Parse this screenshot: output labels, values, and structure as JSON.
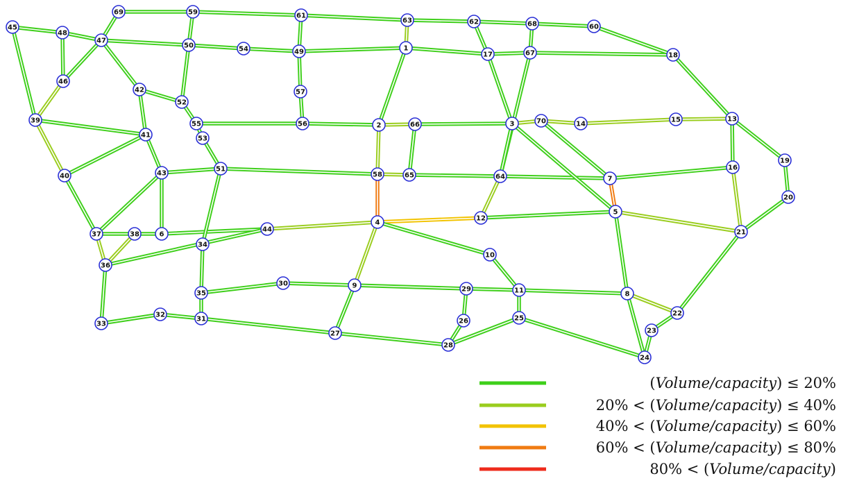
{
  "colors": {
    "c1": "#3ecf1a",
    "c2": "#9acd1e",
    "c3": "#f2c300",
    "c4": "#f07b12",
    "c5": "#ee2b1c",
    "node_fill": "#ffffff",
    "node_stroke": "#2a2fd6"
  },
  "legend": [
    {
      "level": "c1",
      "prefix": "",
      "var": "Volume/capacity",
      "suffix": " ≤ 20%"
    },
    {
      "level": "c2",
      "prefix": "20% < ",
      "var": "Volume/capacity",
      "suffix": " ≤ 40%"
    },
    {
      "level": "c3",
      "prefix": "40% < ",
      "var": "Volume/capacity",
      "suffix": " ≤ 60%"
    },
    {
      "level": "c4",
      "prefix": "60% < ",
      "var": "Volume/capacity",
      "suffix": " ≤ 80%"
    },
    {
      "level": "c5",
      "prefix": "80% < ",
      "var": "Volume/capacity",
      "suffix": ""
    }
  ],
  "nodes": [
    "1",
    "2",
    "3",
    "4",
    "5",
    "6",
    "7",
    "8",
    "9",
    "10",
    "11",
    "12",
    "13",
    "14",
    "15",
    "16",
    "17",
    "18",
    "19",
    "20",
    "21",
    "22",
    "23",
    "24",
    "25",
    "26",
    "27",
    "28",
    "29",
    "30",
    "31",
    "32",
    "33",
    "34",
    "35",
    "36",
    "37",
    "38",
    "39",
    "40",
    "41",
    "42",
    "43",
    "44",
    "45",
    "46",
    "47",
    "48",
    "49",
    "50",
    "51",
    "52",
    "53",
    "54",
    "55",
    "56",
    "57",
    "58",
    "59",
    "60",
    "61",
    "62",
    "63",
    "64",
    "65",
    "66",
    "67",
    "68",
    "69",
    "70"
  ],
  "links": [
    [
      "69",
      "59",
      "c1"
    ],
    [
      "59",
      "61",
      "c1"
    ],
    [
      "61",
      "63",
      "c1"
    ],
    [
      "63",
      "62",
      "c1"
    ],
    [
      "62",
      "68",
      "c1"
    ],
    [
      "68",
      "60",
      "c1"
    ],
    [
      "60",
      "18",
      "c1"
    ],
    [
      "45",
      "48",
      "c1"
    ],
    [
      "48",
      "47",
      "c1"
    ],
    [
      "47",
      "50",
      "c1"
    ],
    [
      "50",
      "54",
      "c1"
    ],
    [
      "54",
      "49",
      "c1"
    ],
    [
      "49",
      "1",
      "c1"
    ],
    [
      "1",
      "17",
      "c1"
    ],
    [
      "17",
      "67",
      "c1"
    ],
    [
      "67",
      "18",
      "c1"
    ],
    [
      "69",
      "47",
      "c1"
    ],
    [
      "59",
      "50",
      "c1"
    ],
    [
      "61",
      "49",
      "c1"
    ],
    [
      "63",
      "1",
      "c2"
    ],
    [
      "62",
      "17",
      "c1"
    ],
    [
      "68",
      "67",
      "c1"
    ],
    [
      "45",
      "39",
      "c1"
    ],
    [
      "48",
      "46",
      "c1"
    ],
    [
      "47",
      "46",
      "c1"
    ],
    [
      "46",
      "39",
      "c2"
    ],
    [
      "47",
      "42",
      "c1"
    ],
    [
      "42",
      "52",
      "c1"
    ],
    [
      "42",
      "41",
      "c1"
    ],
    [
      "50",
      "52",
      "c1"
    ],
    [
      "52",
      "55",
      "c1"
    ],
    [
      "49",
      "57",
      "c1"
    ],
    [
      "57",
      "56",
      "c1"
    ],
    [
      "1",
      "2",
      "c1"
    ],
    [
      "17",
      "3",
      "c1"
    ],
    [
      "67",
      "64",
      "c1"
    ],
    [
      "18",
      "13",
      "c1"
    ],
    [
      "55",
      "56",
      "c1"
    ],
    [
      "56",
      "2",
      "c1"
    ],
    [
      "2",
      "66",
      "c2"
    ],
    [
      "66",
      "3",
      "c1"
    ],
    [
      "3",
      "70",
      "c2"
    ],
    [
      "70",
      "14",
      "c2"
    ],
    [
      "14",
      "15",
      "c2"
    ],
    [
      "15",
      "13",
      "c2"
    ],
    [
      "39",
      "41",
      "c1"
    ],
    [
      "39",
      "40",
      "c2"
    ],
    [
      "41",
      "40",
      "c1"
    ],
    [
      "41",
      "43",
      "c1"
    ],
    [
      "55",
      "53",
      "c1"
    ],
    [
      "53",
      "51",
      "c1"
    ],
    [
      "43",
      "51",
      "c1"
    ],
    [
      "51",
      "58",
      "c1"
    ],
    [
      "58",
      "65",
      "c2"
    ],
    [
      "65",
      "64",
      "c1"
    ],
    [
      "64",
      "7",
      "c1"
    ],
    [
      "7",
      "16",
      "c1"
    ],
    [
      "2",
      "58",
      "c2"
    ],
    [
      "66",
      "65",
      "c1"
    ],
    [
      "3",
      "64",
      "c1"
    ],
    [
      "3",
      "5",
      "c1"
    ],
    [
      "70",
      "7",
      "c1"
    ],
    [
      "13",
      "16",
      "c1"
    ],
    [
      "13",
      "19",
      "c1"
    ],
    [
      "19",
      "20",
      "c1"
    ],
    [
      "16",
      "21",
      "c2"
    ],
    [
      "20",
      "21",
      "c1"
    ],
    [
      "58",
      "4",
      "c4"
    ],
    [
      "7",
      "5",
      "c4"
    ],
    [
      "64",
      "12",
      "c2"
    ],
    [
      "40",
      "37",
      "c1"
    ],
    [
      "43",
      "37",
      "c1"
    ],
    [
      "43",
      "6",
      "c1"
    ],
    [
      "37",
      "38",
      "c1"
    ],
    [
      "38",
      "6",
      "c1"
    ],
    [
      "6",
      "44",
      "c1"
    ],
    [
      "44",
      "4",
      "c2"
    ],
    [
      "4",
      "12",
      "c3"
    ],
    [
      "12",
      "5",
      "c1"
    ],
    [
      "5",
      "21",
      "c2"
    ],
    [
      "37",
      "36",
      "c2"
    ],
    [
      "38",
      "36",
      "c2"
    ],
    [
      "36",
      "44",
      "c1"
    ],
    [
      "51",
      "34",
      "c1"
    ],
    [
      "34",
      "35",
      "c1"
    ],
    [
      "4",
      "10",
      "c1"
    ],
    [
      "4",
      "9",
      "c2"
    ],
    [
      "10",
      "11",
      "c1"
    ],
    [
      "5",
      "8",
      "c1"
    ],
    [
      "21",
      "22",
      "c1"
    ],
    [
      "35",
      "30",
      "c1"
    ],
    [
      "30",
      "9",
      "c1"
    ],
    [
      "9",
      "29",
      "c1"
    ],
    [
      "29",
      "11",
      "c1"
    ],
    [
      "11",
      "8",
      "c1"
    ],
    [
      "8",
      "22",
      "c2"
    ],
    [
      "35",
      "31",
      "c1"
    ],
    [
      "33",
      "32",
      "c1"
    ],
    [
      "32",
      "31",
      "c1"
    ],
    [
      "36",
      "33",
      "c1"
    ],
    [
      "31",
      "27",
      "c1"
    ],
    [
      "9",
      "27",
      "c1"
    ],
    [
      "27",
      "28",
      "c1"
    ],
    [
      "29",
      "26",
      "c1"
    ],
    [
      "26",
      "28",
      "c1"
    ],
    [
      "11",
      "25",
      "c1"
    ],
    [
      "25",
      "28",
      "c1"
    ],
    [
      "25",
      "24",
      "c1"
    ],
    [
      "8",
      "24",
      "c1"
    ],
    [
      "24",
      "23",
      "c1"
    ],
    [
      "23",
      "22",
      "c1"
    ]
  ]
}
